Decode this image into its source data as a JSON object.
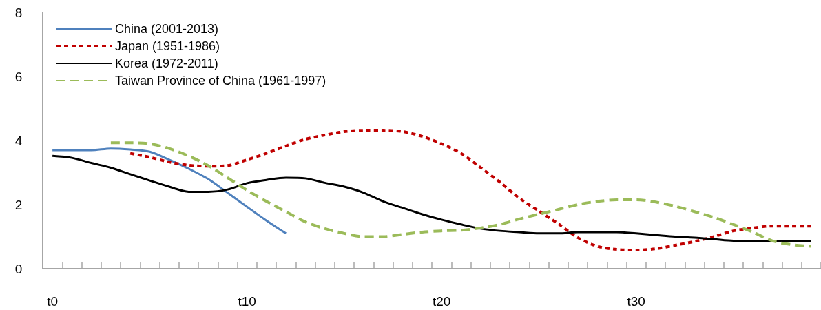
{
  "chart_data": {
    "type": "line",
    "categories": [
      "t0",
      null,
      null,
      null,
      null,
      null,
      null,
      null,
      null,
      null,
      "t10",
      null,
      null,
      null,
      null,
      null,
      null,
      null,
      null,
      null,
      "t20",
      null,
      null,
      null,
      null,
      null,
      null,
      null,
      null,
      null,
      "t30",
      null,
      null,
      null,
      null,
      null,
      null,
      null,
      null,
      null
    ],
    "series": [
      {
        "name": "China (2001-2013)",
        "color": "#4f81bd",
        "line_style": "solid",
        "values": [
          3.7,
          3.7,
          3.7,
          3.75,
          3.72,
          3.65,
          3.4,
          3.12,
          2.8,
          2.37,
          1.93,
          1.5,
          1.1,
          null,
          null,
          null,
          null,
          null,
          null,
          null,
          null,
          null,
          null,
          null,
          null,
          null,
          null,
          null,
          null,
          null,
          null,
          null,
          null,
          null,
          null,
          null,
          null,
          null,
          null,
          null
        ]
      },
      {
        "name": "Japan (1951-1986)",
        "color": "#c00000",
        "line_style": "dotted",
        "values": [
          null,
          null,
          null,
          null,
          3.6,
          3.48,
          3.33,
          3.23,
          3.2,
          3.22,
          3.4,
          3.6,
          3.83,
          4.04,
          4.17,
          4.28,
          4.32,
          4.32,
          4.28,
          4.13,
          3.9,
          3.6,
          3.16,
          2.7,
          2.2,
          1.8,
          1.4,
          0.97,
          0.7,
          0.6,
          0.58,
          0.62,
          0.73,
          0.85,
          1.0,
          1.18,
          1.27,
          1.33,
          1.33,
          1.33
        ]
      },
      {
        "name": "Korea (1972-2011)",
        "color": "#000000",
        "line_style": "solid",
        "values": [
          3.52,
          3.46,
          3.3,
          3.15,
          2.95,
          2.75,
          2.56,
          2.4,
          2.4,
          2.47,
          2.67,
          2.77,
          2.84,
          2.82,
          2.68,
          2.56,
          2.37,
          2.1,
          1.9,
          1.7,
          1.53,
          1.38,
          1.25,
          1.18,
          1.14,
          1.1,
          1.1,
          1.14,
          1.14,
          1.14,
          1.1,
          1.05,
          1.0,
          0.97,
          0.92,
          0.87,
          0.87,
          0.87,
          0.87,
          0.87
        ]
      },
      {
        "name": "Taiwan Province of China (1961-1997)",
        "color": "#9bbb59",
        "line_style": "dashed",
        "values": [
          null,
          null,
          null,
          3.93,
          3.93,
          3.9,
          3.75,
          3.52,
          3.22,
          2.84,
          2.45,
          2.1,
          1.78,
          1.46,
          1.25,
          1.1,
          1.0,
          1.0,
          1.07,
          1.14,
          1.18,
          1.2,
          1.27,
          1.38,
          1.55,
          1.7,
          1.85,
          2.0,
          2.1,
          2.15,
          2.15,
          2.08,
          1.95,
          1.78,
          1.6,
          1.38,
          1.14,
          0.87,
          0.75,
          0.7
        ]
      }
    ],
    "ylim": [
      0,
      8
    ],
    "yticks": [
      0,
      2,
      4,
      6,
      8
    ],
    "grid": false,
    "legend": "top left",
    "marker": "none"
  }
}
